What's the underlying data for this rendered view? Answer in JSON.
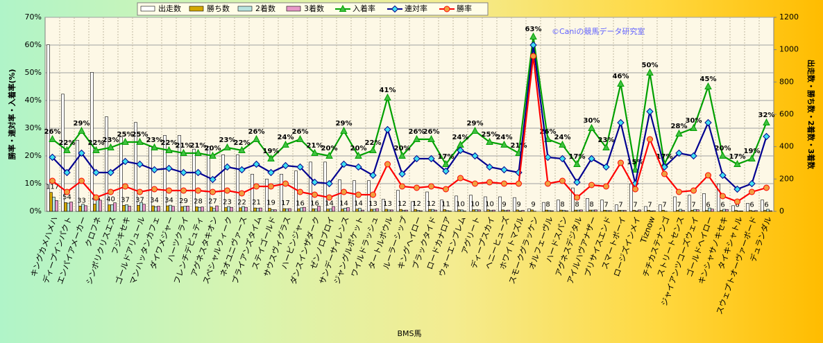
{
  "chart_data": {
    "type": "combo",
    "annotation": "©Caniの競馬データ研究室",
    "x_label": "BMS馬",
    "y_label": "勝率・連対率・入着率(%)",
    "y2_label": "出走数・勝ち数・2着数・3着数",
    "categories": [
      "キングカメハメハ",
      "ディープインパクト",
      "エンパイアメーカー",
      "クロフネ",
      "シンボリクリスエス",
      "フジキセキ",
      "ゴールドアリュール",
      "マンハッタンカフェ",
      "ダイワメジャー",
      "ハーツクライ",
      "フレンチデピュティ",
      "アグネスタキオン",
      "スペシャルウィーク",
      "ネオユニヴァース",
      "ブライアンズタイム",
      "ステイゴールド",
      "サウスヴィグラス",
      "ハービンジャー",
      "ダンスインザダーク",
      "ゼンノロブロイ",
      "サンデーサイレンス",
      "ジャングルポケット",
      "ワイルドラッシュ",
      "タートルボウル",
      "ルーラーシップ",
      "キングヘイロー",
      "ブラックタイド",
      "ロードカナロア",
      "ウォーエンブレム",
      "アグリート",
      "ディープスカイ",
      "ヘニーヒューズ",
      "ホワイトマズル",
      "スモークグラッケン",
      "オルフェーヴル",
      "ハードスパン",
      "アグネスデジタル",
      "アイルハヴアナザー",
      "プリサイスエンド",
      "スマートボーイ",
      "ロージズインメイ",
      "Tiznow",
      "チチカステナンゴ",
      "ストリートセンス",
      "ジャイアンツコーズウェイ",
      "ゴールドヘイロー",
      "キンシャサノキセキ",
      "タイキシャトル",
      "スウェプトオーヴァーボード",
      "デュランダル"
    ],
    "ylim": [
      0,
      70
    ],
    "yticks": [
      {
        "value": 0,
        "label": "0%"
      },
      {
        "value": 10,
        "label": "10%"
      },
      {
        "value": 20,
        "label": "20%"
      },
      {
        "value": 30,
        "label": "30%"
      },
      {
        "value": 40,
        "label": "40%"
      },
      {
        "value": 50,
        "label": "50%"
      },
      {
        "value": 60,
        "label": "60%"
      },
      {
        "value": 70,
        "label": "70%"
      }
    ],
    "y2lim": [
      0,
      1200
    ],
    "y2ticks": [
      0,
      200,
      400,
      600,
      800,
      1000,
      1200
    ],
    "grid": true,
    "series": [
      {
        "name": "出走数",
        "type": "bar",
        "axis": "y2",
        "color": "#ffffff",
        "values": [
          1030,
          725,
          440,
          860,
          585,
          460,
          550,
          400,
          470,
          470,
          385,
          400,
          350,
          350,
          230,
          200,
          230,
          250,
          305,
          305,
          195,
          190,
          190,
          75,
          130,
          60,
          120,
          70,
          95,
          100,
          90,
          90,
          85,
          15,
          55,
          70,
          145,
          80,
          70,
          40,
          170,
          30,
          40,
          90,
          100,
          110,
          170,
          35,
          50,
          70
        ]
      },
      {
        "name": "勝ち数",
        "type": "bar",
        "axis": "y2",
        "color": "#d4a800",
        "labels": true,
        "values": [
          117,
          54,
          33,
          45,
          40,
          37,
          37,
          34,
          34,
          29,
          28,
          27,
          23,
          22,
          21,
          19,
          17,
          16,
          16,
          14,
          14,
          14,
          13,
          13,
          12,
          12,
          12,
          11,
          10,
          10,
          10,
          9,
          9,
          9,
          8,
          8,
          8,
          8,
          7,
          7,
          7,
          7,
          7,
          7,
          7,
          6,
          6,
          6,
          6,
          6
        ]
      },
      {
        "name": "2着数",
        "type": "bar",
        "axis": "y2",
        "color": "#b8e4e0",
        "values": [
          88,
          51,
          44,
          77,
          41,
          41,
          55,
          28,
          38,
          31,
          25,
          18,
          30,
          30,
          18,
          10,
          15,
          22,
          14,
          15,
          20,
          19,
          13,
          9,
          6,
          6,
          12,
          5,
          9,
          10,
          5,
          5,
          3,
          1,
          5,
          6,
          8,
          8,
          5,
          6,
          3,
          3,
          1,
          13,
          12,
          21,
          13,
          2,
          2,
          13
        ]
      },
      {
        "name": "3着数",
        "type": "bar",
        "axis": "y2",
        "color": "#e898c8",
        "values": [
          67,
          58,
          35,
          69,
          53,
          32,
          44,
          32,
          31,
          33,
          27,
          34,
          25,
          25,
          21,
          10,
          17,
          25,
          32,
          30,
          23,
          8,
          17,
          9,
          8,
          4,
          8,
          2,
          2,
          9,
          8,
          8,
          6,
          0,
          4,
          4,
          9,
          9,
          5,
          6,
          9,
          4,
          0,
          6,
          10,
          14,
          12,
          3,
          5,
          4
        ]
      },
      {
        "name": "入着率",
        "type": "line",
        "color": "#00a000",
        "marker": "triangle",
        "marker_color": "#40c040",
        "values": [
          26,
          22,
          29,
          22,
          23,
          25,
          25,
          23,
          22,
          21,
          21,
          20,
          23,
          22,
          26,
          19,
          24,
          26,
          21,
          20,
          29,
          20,
          22,
          41,
          20,
          26,
          26,
          17,
          24,
          29,
          25,
          24,
          21,
          63,
          26,
          24,
          17,
          30,
          23,
          46,
          15,
          50,
          17,
          28,
          30,
          45,
          20,
          17,
          19,
          32
        ],
        "value_labels": [
          "26%",
          "22%",
          "29%",
          "22%",
          "23%",
          "25%",
          "25%",
          "23%",
          "22%",
          "21%",
          "21%",
          "20%",
          "23%",
          "22%",
          "26%",
          "19%",
          "24%",
          "26%",
          "21%",
          "20%",
          "29%",
          "20%",
          "22%",
          "41%",
          "20%",
          "26%",
          "26%",
          "17%",
          "24%",
          "29%",
          "25%",
          "24%",
          "21%",
          "63%",
          "26%",
          "24%",
          "17%",
          "30%",
          "23%",
          "46%",
          "15%",
          "50%",
          "17%",
          "28%",
          "30%",
          "45%",
          "20%",
          "17%",
          "19%",
          "32%"
        ]
      },
      {
        "name": "連対率",
        "type": "line",
        "color": "#000090",
        "marker": "diamond",
        "marker_color": "#40e0f0",
        "values": [
          19.5,
          14,
          21,
          14,
          14,
          18,
          17,
          15,
          15.5,
          14,
          14,
          11.5,
          16,
          15,
          17,
          14,
          16.5,
          16,
          10.5,
          10,
          17,
          16,
          13,
          29.5,
          13.5,
          19,
          19,
          14.5,
          22,
          20,
          16,
          15,
          14,
          60,
          19.5,
          19,
          10.5,
          19,
          16,
          32,
          10,
          36,
          16,
          21,
          20,
          32,
          13,
          8,
          10,
          27
        ]
      },
      {
        "name": "勝率",
        "type": "line",
        "color": "#ff0000",
        "marker": "circle",
        "marker_color": "#f0a040",
        "values": [
          11,
          7,
          11,
          5,
          7,
          9,
          7,
          8,
          7.5,
          7.5,
          7.5,
          7,
          7.5,
          6.5,
          9,
          9,
          10,
          7,
          6,
          5,
          7,
          6,
          6,
          17,
          9,
          8.5,
          9,
          8,
          12,
          10,
          10.5,
          10,
          10,
          56,
          10,
          11,
          5,
          9.5,
          9,
          17.5,
          8,
          26,
          13.5,
          7,
          7.5,
          13,
          5.5,
          3.5,
          7,
          8.5
        ]
      }
    ]
  }
}
